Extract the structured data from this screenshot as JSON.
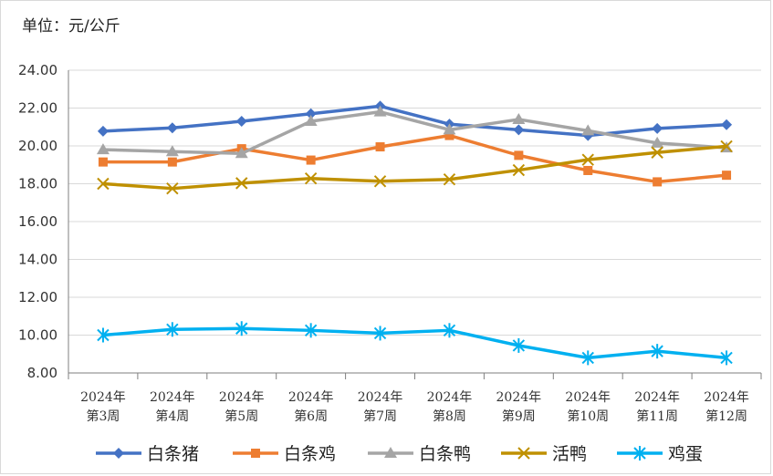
{
  "unit_label": "单位：元/公斤",
  "chart_data": {
    "type": "line",
    "title": "",
    "xlabel": "",
    "ylabel": "单位：元/公斤",
    "ylim": [
      8,
      24
    ],
    "yticks": [
      "24.00",
      "22.00",
      "20.00",
      "18.00",
      "16.00",
      "14.00",
      "12.00",
      "10.00",
      "8.00"
    ],
    "ytick_values": [
      24,
      22,
      20,
      18,
      16,
      14,
      12,
      10,
      8
    ],
    "categories": [
      [
        "2024年",
        "第3周"
      ],
      [
        "2024年",
        "第4周"
      ],
      [
        "2024年",
        "第5周"
      ],
      [
        "2024年",
        "第6周"
      ],
      [
        "2024年",
        "第7周"
      ],
      [
        "2024年",
        "第8周"
      ],
      [
        "2024年",
        "第9周"
      ],
      [
        "2024年",
        "第10周"
      ],
      [
        "2024年",
        "第11周"
      ],
      [
        "2024年",
        "第12周"
      ]
    ],
    "grid": true,
    "legend": "bottom",
    "series": [
      {
        "name": "白条猪",
        "color": "#4472C4",
        "marker": "diamond",
        "values": [
          20.78,
          20.95,
          21.3,
          21.7,
          22.1,
          21.15,
          20.85,
          20.55,
          20.92,
          21.12
        ]
      },
      {
        "name": "白条鸡",
        "color": "#ED7D31",
        "marker": "square",
        "values": [
          19.15,
          19.15,
          19.85,
          19.25,
          19.95,
          20.55,
          19.5,
          18.7,
          18.1,
          18.45
        ]
      },
      {
        "name": "白条鸭",
        "color": "#A5A5A5",
        "marker": "triangle",
        "values": [
          19.8,
          19.7,
          19.6,
          21.3,
          21.8,
          20.85,
          21.4,
          20.8,
          20.15,
          19.9
        ]
      },
      {
        "name": "活鸭",
        "color": "#BF9000",
        "marker": "x",
        "values": [
          18.0,
          17.75,
          18.03,
          18.28,
          18.13,
          18.23,
          18.72,
          19.27,
          19.65,
          19.98
        ]
      },
      {
        "name": "鸡蛋",
        "color": "#00B0F0",
        "marker": "asterisk",
        "values": [
          10.0,
          10.3,
          10.35,
          10.25,
          10.1,
          10.25,
          9.45,
          8.8,
          9.15,
          8.8
        ]
      }
    ]
  }
}
